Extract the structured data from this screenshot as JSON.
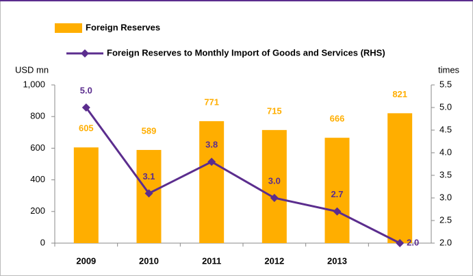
{
  "chart_data": {
    "type": "bar",
    "categories": [
      "2009",
      "2010",
      "2011",
      "2012",
      "2013",
      null
    ],
    "series": [
      {
        "name": "Foreign Reserves",
        "color": "#ffae00",
        "values": [
          605,
          589,
          771,
          715,
          666,
          821
        ]
      },
      {
        "name": "Foreign Reserves to Monthly Import of Goods and Services (RHS)",
        "type": "line",
        "axis": "y2",
        "color": "#5b2d8e",
        "values": [
          5.0,
          3.1,
          3.8,
          3.0,
          2.7,
          2.0
        ],
        "value_labels": [
          "5.0",
          "3.1",
          "3.8",
          "3.0",
          "2.7",
          "2.0"
        ]
      }
    ],
    "ylabel": "USD mn",
    "y2label": "times",
    "ylim": [
      0,
      1000
    ],
    "yticks": [
      0,
      200,
      400,
      600,
      800,
      {
        "value": 1000,
        "label": "1,000"
      }
    ],
    "y2lim": [
      2.0,
      5.5
    ],
    "y2ticks": [
      {
        "value": 2.0,
        "label": "2.0"
      },
      {
        "value": 2.5,
        "label": "2.5"
      },
      {
        "value": 3.0,
        "label": "3.0"
      },
      {
        "value": 3.5,
        "label": "3.5"
      },
      {
        "value": 4.0,
        "label": "4.0"
      },
      {
        "value": 4.5,
        "label": "4.5"
      },
      {
        "value": 5.0,
        "label": "5.0"
      },
      {
        "value": 5.5,
        "label": "5.5"
      }
    ],
    "grid": false
  }
}
